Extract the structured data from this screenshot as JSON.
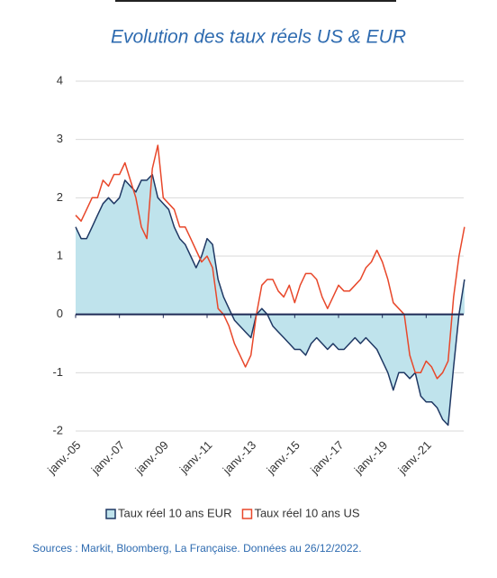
{
  "chart_data": {
    "type": "line",
    "title": "Evolution des taux réels US & EUR",
    "x": [
      2005,
      2005.25,
      2005.5,
      2005.75,
      2006,
      2006.25,
      2006.5,
      2006.75,
      2007,
      2007.25,
      2007.5,
      2007.75,
      2008,
      2008.25,
      2008.5,
      2008.75,
      2009,
      2009.25,
      2009.5,
      2009.75,
      2010,
      2010.25,
      2010.5,
      2010.75,
      2011,
      2011.25,
      2011.5,
      2011.75,
      2012,
      2012.25,
      2012.5,
      2012.75,
      2013,
      2013.25,
      2013.5,
      2013.75,
      2014,
      2014.25,
      2014.5,
      2014.75,
      2015,
      2015.25,
      2015.5,
      2015.75,
      2016,
      2016.25,
      2016.5,
      2016.75,
      2017,
      2017.25,
      2017.5,
      2017.75,
      2018,
      2018.25,
      2018.5,
      2018.75,
      2019,
      2019.25,
      2019.5,
      2019.75,
      2020,
      2020.25,
      2020.5,
      2020.75,
      2021,
      2021.25,
      2021.5,
      2021.75,
      2022,
      2022.25,
      2022.5,
      2022.75
    ],
    "series": [
      {
        "name": "Taux réel 10 ans EUR",
        "color": "#1f3864",
        "fill": "#bfe3ec",
        "area": true,
        "values": [
          1.5,
          1.3,
          1.3,
          1.5,
          1.7,
          1.9,
          2.0,
          1.9,
          2.0,
          2.3,
          2.2,
          2.1,
          2.3,
          2.3,
          2.4,
          2.0,
          1.9,
          1.8,
          1.5,
          1.3,
          1.2,
          1.0,
          0.8,
          1.0,
          1.3,
          1.2,
          0.6,
          0.3,
          0.1,
          -0.1,
          -0.2,
          -0.3,
          -0.4,
          0.0,
          0.1,
          0.0,
          -0.2,
          -0.3,
          -0.4,
          -0.5,
          -0.6,
          -0.6,
          -0.7,
          -0.5,
          -0.4,
          -0.5,
          -0.6,
          -0.5,
          -0.6,
          -0.6,
          -0.5,
          -0.4,
          -0.5,
          -0.4,
          -0.5,
          -0.6,
          -0.8,
          -1.0,
          -1.3,
          -1.0,
          -1.0,
          -1.1,
          -1.0,
          -1.4,
          -1.5,
          -1.5,
          -1.6,
          -1.8,
          -1.9,
          -0.9,
          0.0,
          0.6
        ]
      },
      {
        "name": "Taux réel 10 ans US",
        "color": "#e8472a",
        "area": false,
        "values": [
          1.7,
          1.6,
          1.8,
          2.0,
          2.0,
          2.3,
          2.2,
          2.4,
          2.4,
          2.6,
          2.3,
          2.0,
          1.5,
          1.3,
          2.5,
          2.9,
          2.0,
          1.9,
          1.8,
          1.5,
          1.5,
          1.3,
          1.1,
          0.9,
          1.0,
          0.8,
          0.1,
          0.0,
          -0.2,
          -0.5,
          -0.7,
          -0.9,
          -0.7,
          0.0,
          0.5,
          0.6,
          0.6,
          0.4,
          0.3,
          0.5,
          0.2,
          0.5,
          0.7,
          0.7,
          0.6,
          0.3,
          0.1,
          0.3,
          0.5,
          0.4,
          0.4,
          0.5,
          0.6,
          0.8,
          0.9,
          1.1,
          0.9,
          0.6,
          0.2,
          0.1,
          0.0,
          -0.7,
          -1.0,
          -1.0,
          -0.8,
          -0.9,
          -1.1,
          -1.0,
          -0.8,
          0.3,
          1.0,
          1.5
        ]
      }
    ],
    "xlim": [
      2005,
      2023
    ],
    "xticks": [
      {
        "value": 2005,
        "label": "janv.-05"
      },
      {
        "value": 2007,
        "label": "janv.-07"
      },
      {
        "value": 2009,
        "label": "janv.-09"
      },
      {
        "value": 2011,
        "label": "janv.-11"
      },
      {
        "value": 2013,
        "label": "janv.-13"
      },
      {
        "value": 2015,
        "label": "janv.-15"
      },
      {
        "value": 2017,
        "label": "janv.-17"
      },
      {
        "value": 2019,
        "label": "janv.-19"
      },
      {
        "value": 2021,
        "label": "janv.-21"
      }
    ],
    "ylim": [
      -2,
      4
    ],
    "yticks": [
      -2,
      -1,
      0,
      1,
      2,
      3,
      4
    ],
    "grid": true,
    "legend": "bottom",
    "source": "Sources : Markit, Bloomberg, La Française. Données au 26/12/2022."
  }
}
